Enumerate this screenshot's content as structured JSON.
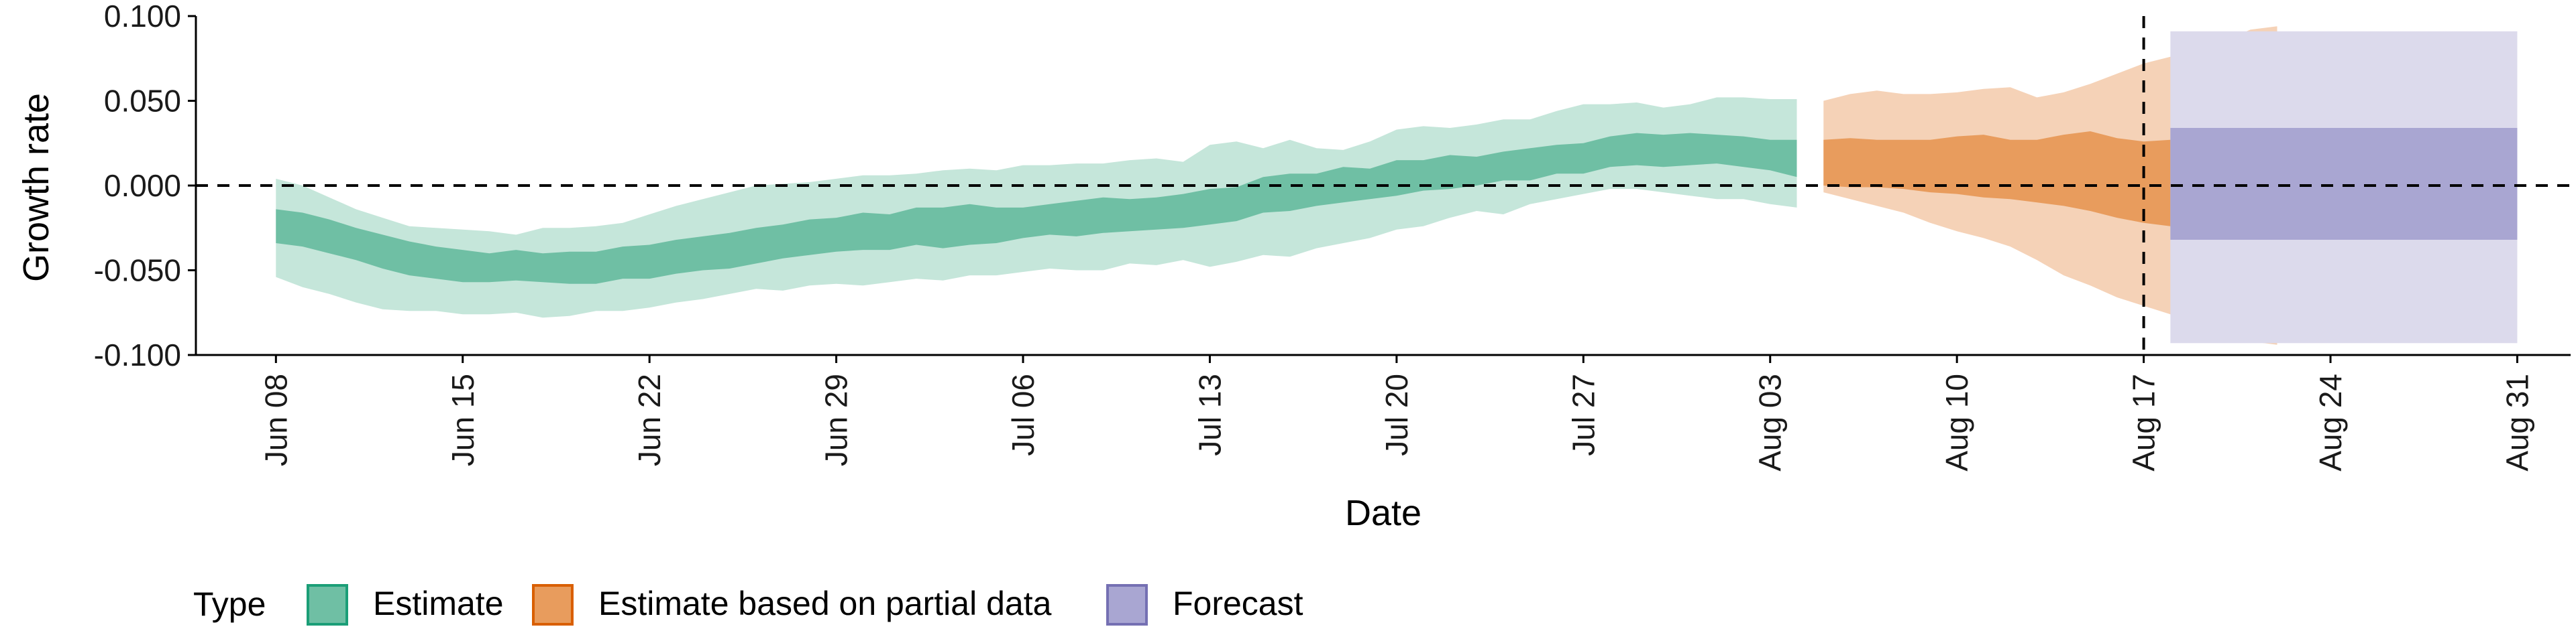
{
  "chart_data": {
    "type": "area",
    "title": "",
    "xlabel": "Date",
    "ylabel": "Growth rate",
    "ylim": [
      -0.1,
      0.1
    ],
    "xlim": [
      "2020-06-05",
      "2020-09-02"
    ],
    "yticks": [
      "0.100",
      "0.050",
      "0.000",
      "-0.050",
      "-0.100"
    ],
    "xticks": [
      {
        "date": "2020-06-08",
        "label": "Jun 08"
      },
      {
        "date": "2020-06-15",
        "label": "Jun 15"
      },
      {
        "date": "2020-06-22",
        "label": "Jun 22"
      },
      {
        "date": "2020-06-29",
        "label": "Jun 29"
      },
      {
        "date": "2020-07-06",
        "label": "Jul 06"
      },
      {
        "date": "2020-07-13",
        "label": "Jul 13"
      },
      {
        "date": "2020-07-20",
        "label": "Jul 20"
      },
      {
        "date": "2020-07-27",
        "label": "Jul 27"
      },
      {
        "date": "2020-08-03",
        "label": "Aug 03"
      },
      {
        "date": "2020-08-10",
        "label": "Aug 10"
      },
      {
        "date": "2020-08-17",
        "label": "Aug 17"
      },
      {
        "date": "2020-08-24",
        "label": "Aug 24"
      },
      {
        "date": "2020-08-31",
        "label": "Aug 31"
      }
    ],
    "reference_lines": {
      "horizontal_y": 0,
      "vertical_date": "2020-08-17"
    },
    "grid": false,
    "legend": {
      "title": "Type",
      "position": "bottom-left",
      "entries": [
        {
          "label": "Estimate",
          "color": "#1b9e77"
        },
        {
          "label": "Estimate based on partial data",
          "color": "#d95f02"
        },
        {
          "label": "Forecast",
          "color": "#7570b3"
        }
      ]
    },
    "series": [
      {
        "name": "Estimate",
        "color": "#1b9e77",
        "start_date": "2020-06-08",
        "outer_upper": [
          0.004,
          0.0,
          -0.007,
          -0.014,
          -0.019,
          -0.024,
          -0.025,
          -0.026,
          -0.027,
          -0.029,
          -0.025,
          -0.025,
          -0.024,
          -0.022,
          -0.017,
          -0.012,
          -0.008,
          -0.004,
          0.0,
          0.001,
          0.002,
          0.004,
          0.006,
          0.006,
          0.007,
          0.009,
          0.01,
          0.009,
          0.012,
          0.012,
          0.013,
          0.013,
          0.015,
          0.016,
          0.014,
          0.024,
          0.026,
          0.022,
          0.027,
          0.022,
          0.021,
          0.026,
          0.033,
          0.035,
          0.034,
          0.036,
          0.039,
          0.039,
          0.044,
          0.048,
          0.048,
          0.049,
          0.046,
          0.048,
          0.052,
          0.052,
          0.051,
          0.051
        ],
        "inner_upper": [
          -0.014,
          -0.016,
          -0.02,
          -0.025,
          -0.029,
          -0.033,
          -0.036,
          -0.038,
          -0.04,
          -0.038,
          -0.04,
          -0.039,
          -0.039,
          -0.036,
          -0.035,
          -0.032,
          -0.03,
          -0.028,
          -0.025,
          -0.023,
          -0.02,
          -0.019,
          -0.016,
          -0.017,
          -0.013,
          -0.013,
          -0.011,
          -0.013,
          -0.013,
          -0.011,
          -0.009,
          -0.007,
          -0.008,
          -0.007,
          -0.005,
          -0.002,
          -0.001,
          0.005,
          0.007,
          0.007,
          0.011,
          0.01,
          0.015,
          0.015,
          0.018,
          0.017,
          0.02,
          0.022,
          0.024,
          0.025,
          0.029,
          0.031,
          0.03,
          0.031,
          0.03,
          0.029,
          0.027,
          0.027
        ],
        "inner_lower": [
          -0.034,
          -0.036,
          -0.04,
          -0.044,
          -0.049,
          -0.053,
          -0.055,
          -0.057,
          -0.057,
          -0.056,
          -0.057,
          -0.058,
          -0.058,
          -0.055,
          -0.055,
          -0.052,
          -0.05,
          -0.049,
          -0.046,
          -0.043,
          -0.041,
          -0.039,
          -0.038,
          -0.038,
          -0.035,
          -0.037,
          -0.035,
          -0.034,
          -0.031,
          -0.029,
          -0.03,
          -0.028,
          -0.027,
          -0.026,
          -0.025,
          -0.023,
          -0.021,
          -0.016,
          -0.015,
          -0.012,
          -0.01,
          -0.008,
          -0.006,
          -0.003,
          -0.002,
          0.0,
          0.003,
          0.003,
          0.007,
          0.007,
          0.011,
          0.012,
          0.011,
          0.012,
          0.013,
          0.011,
          0.009,
          0.005
        ],
        "outer_lower": [
          -0.054,
          -0.06,
          -0.064,
          -0.069,
          -0.073,
          -0.074,
          -0.074,
          -0.076,
          -0.076,
          -0.075,
          -0.078,
          -0.077,
          -0.074,
          -0.074,
          -0.072,
          -0.069,
          -0.067,
          -0.064,
          -0.061,
          -0.062,
          -0.059,
          -0.058,
          -0.059,
          -0.057,
          -0.055,
          -0.056,
          -0.053,
          -0.053,
          -0.051,
          -0.049,
          -0.05,
          -0.05,
          -0.046,
          -0.047,
          -0.044,
          -0.048,
          -0.045,
          -0.041,
          -0.042,
          -0.037,
          -0.034,
          -0.031,
          -0.026,
          -0.024,
          -0.019,
          -0.015,
          -0.017,
          -0.011,
          -0.008,
          -0.005,
          -0.002,
          -0.002,
          -0.004,
          -0.006,
          -0.008,
          -0.008,
          -0.011,
          -0.013
        ]
      },
      {
        "name": "Estimate based on partial data",
        "color": "#d95f02",
        "start_date": "2020-08-05",
        "outer_upper": [
          0.05,
          0.054,
          0.056,
          0.054,
          0.054,
          0.055,
          0.057,
          0.058,
          0.052,
          0.055,
          0.06,
          0.066,
          0.072,
          0.076,
          0.08,
          0.085,
          0.092,
          0.094
        ],
        "inner_upper": [
          0.027,
          0.028,
          0.027,
          0.027,
          0.027,
          0.029,
          0.03,
          0.027,
          0.027,
          0.03,
          0.032,
          0.028,
          0.026,
          0.027,
          0.029,
          0.031,
          0.028,
          0.031
        ],
        "inner_lower": [
          0.0,
          -0.001,
          -0.001,
          -0.002,
          -0.004,
          -0.005,
          -0.007,
          -0.008,
          -0.01,
          -0.012,
          -0.015,
          -0.019,
          -0.022,
          -0.024,
          -0.024,
          -0.025,
          -0.027,
          -0.031
        ],
        "outer_lower": [
          -0.004,
          -0.008,
          -0.012,
          -0.016,
          -0.022,
          -0.027,
          -0.031,
          -0.036,
          -0.044,
          -0.053,
          -0.059,
          -0.066,
          -0.071,
          -0.076,
          -0.081,
          -0.087,
          -0.092,
          -0.094
        ]
      },
      {
        "name": "Forecast",
        "color": "#7570b3",
        "start_date": "2020-08-18",
        "end_date": "2020-08-31",
        "outer_upper": 0.091,
        "inner_upper": 0.034,
        "inner_lower": -0.032,
        "outer_lower": -0.093
      }
    ]
  }
}
